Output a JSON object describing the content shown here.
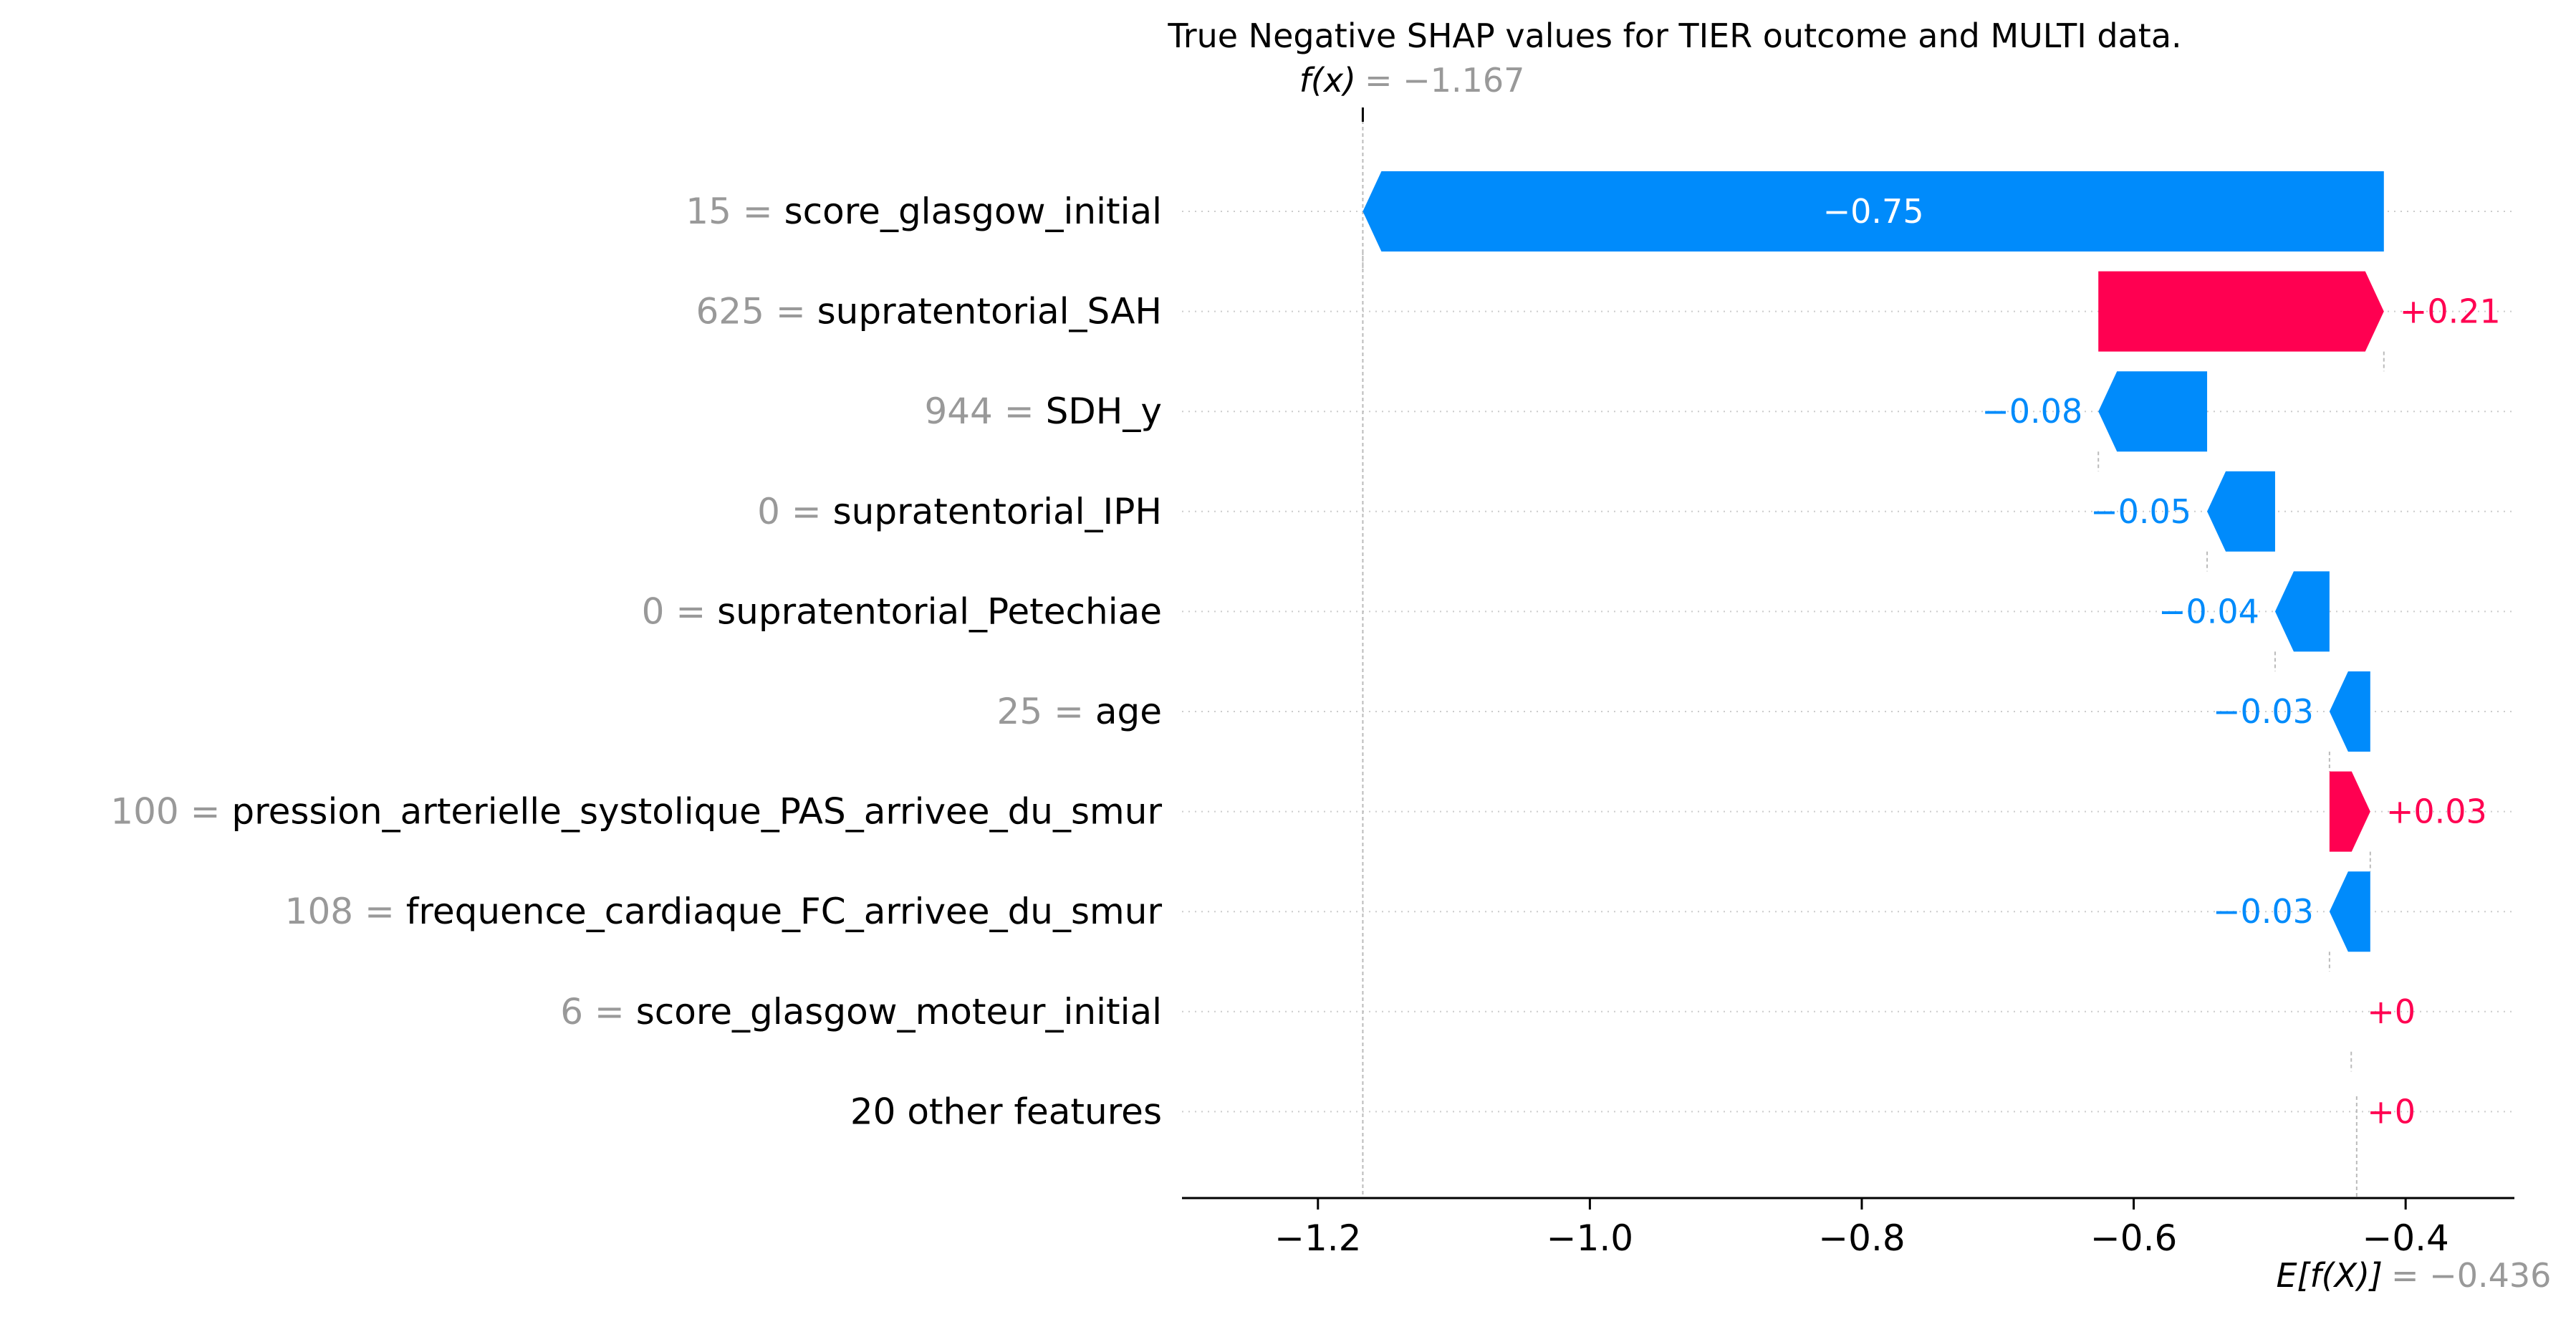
{
  "chart_data": {
    "type": "waterfall",
    "title": "True Negative SHAP values for TIER outcome and MULTI data.",
    "fx_label": "f(x)",
    "fx_value_text": "= −1.167",
    "fx_value": -1.167,
    "efx_label": "E[f(X)]",
    "efx_value_text": "= −0.436",
    "base_value": -0.436,
    "xlim": [
      -1.3,
      -0.32
    ],
    "xticks": [
      -1.2,
      -1.0,
      -0.8,
      -0.6,
      -0.4
    ],
    "xtick_labels": [
      "−1.2",
      "−1.0",
      "−0.8",
      "−0.6",
      "−0.4"
    ],
    "colors": {
      "negative": "#008bfb",
      "positive": "#ff0051",
      "muted": "#999999",
      "axis": "#000000"
    },
    "features": [
      {
        "value": "15",
        "name": "score_glasgow_initial",
        "start": -0.416,
        "shap": -0.751,
        "label": "−0.75"
      },
      {
        "value": "625",
        "name": "supratentorial_SAH",
        "start": -0.626,
        "shap": 0.21,
        "label": "+0.21"
      },
      {
        "value": "944",
        "name": "SDH_y",
        "start": -0.546,
        "shap": -0.08,
        "label": "−0.08"
      },
      {
        "value": "0",
        "name": "supratentorial_IPH",
        "start": -0.496,
        "shap": -0.05,
        "label": "−0.05"
      },
      {
        "value": "0",
        "name": "supratentorial_Petechiae",
        "start": -0.456,
        "shap": -0.04,
        "label": "−0.04"
      },
      {
        "value": "25",
        "name": "age",
        "start": -0.426,
        "shap": -0.03,
        "label": "−0.03"
      },
      {
        "value": "100",
        "name": "pression_arterielle_systolique_PAS_arrivee_du_smur",
        "start": -0.456,
        "shap": 0.03,
        "label": "+0.03"
      },
      {
        "value": "108",
        "name": "frequence_cardiaque_FC_arrivee_du_smur",
        "start": -0.426,
        "shap": -0.03,
        "label": "−0.03"
      },
      {
        "value": "6",
        "name": "score_glasgow_moteur_initial",
        "start": -0.44,
        "shap": 0.0,
        "label": "+0"
      },
      {
        "value": "",
        "name": "20 other features",
        "start": -0.44,
        "shap": 0.0,
        "label": "+0"
      }
    ]
  }
}
